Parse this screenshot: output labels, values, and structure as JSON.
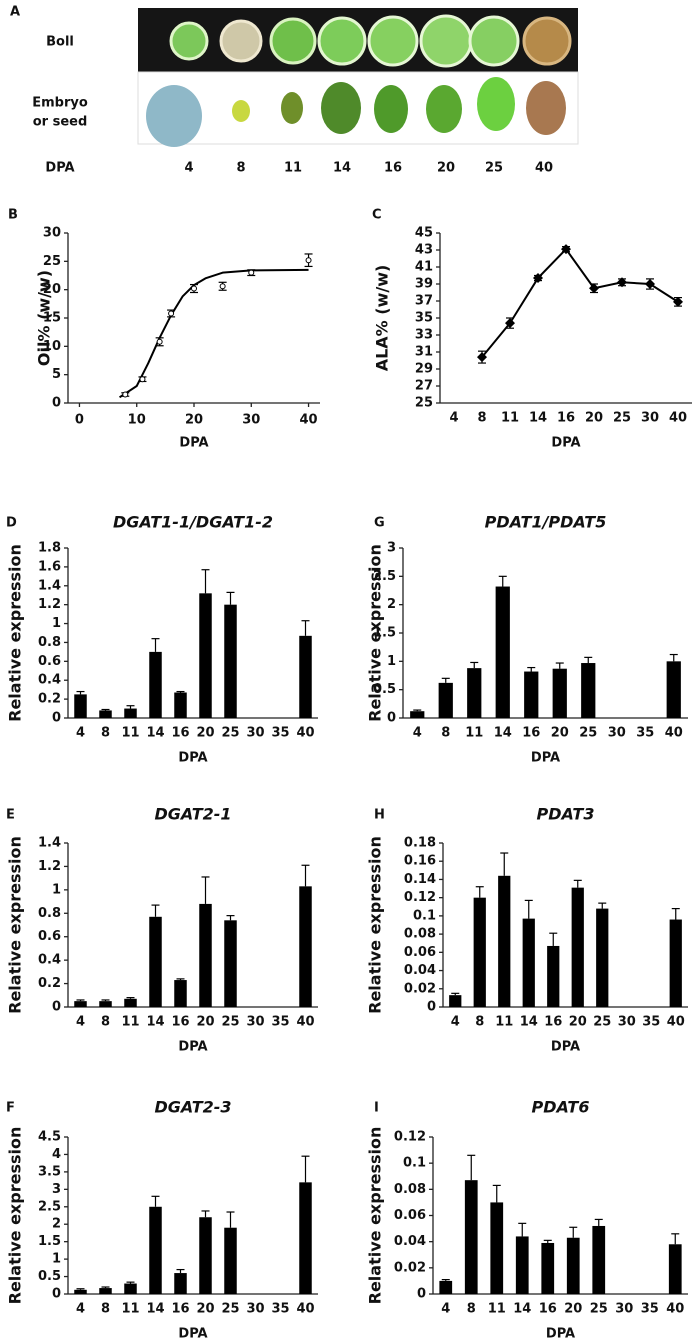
{
  "panel_a": {
    "label": "A",
    "rows": [
      "Boll",
      "Embryo",
      "or seed"
    ],
    "x_label": "DPA",
    "stages": [
      4,
      8,
      11,
      14,
      16,
      20,
      25,
      40
    ]
  },
  "chart_data": [
    {
      "panel": "B",
      "type": "scatter",
      "xlabel": "DPA",
      "ylabel": "Oil% (w/w)",
      "color": "#000000",
      "x": [
        8,
        11,
        14,
        16,
        20,
        25,
        30,
        40
      ],
      "values": [
        1.5,
        4.2,
        10.8,
        15.8,
        20.2,
        20.6,
        23,
        25.2
      ],
      "errors": [
        0.3,
        0.4,
        0.7,
        0.6,
        0.7,
        0.7,
        0.5,
        1.1
      ],
      "fit": {
        "x": [
          7,
          10,
          12,
          14,
          16,
          18,
          20,
          22,
          25,
          30,
          40
        ],
        "values": [
          1,
          3,
          7,
          11.5,
          15.5,
          18.8,
          20.8,
          22,
          23,
          23.4,
          23.5
        ]
      },
      "xlim": [
        -2,
        42
      ],
      "xticks": [
        0,
        10,
        20,
        30,
        40
      ],
      "ylim": [
        0,
        30
      ],
      "yticks": [
        0,
        5,
        10,
        15,
        20,
        25,
        30
      ]
    },
    {
      "panel": "C",
      "type": "line",
      "xlabel": "DPA",
      "ylabel": "ALA% (w/w)",
      "color": "#000000",
      "categories": [
        4,
        8,
        11,
        14,
        16,
        20,
        25,
        30,
        40
      ],
      "values": [
        null,
        30.4,
        34.4,
        39.7,
        43.1,
        38.5,
        39.2,
        39,
        36.9
      ],
      "errors": [
        null,
        0.7,
        0.6,
        0.3,
        0.3,
        0.5,
        0.4,
        0.6,
        0.5
      ],
      "ylim": [
        25,
        45
      ],
      "yticks": [
        25,
        27,
        29,
        31,
        33,
        35,
        37,
        39,
        41,
        43,
        45
      ]
    },
    {
      "panel": "D",
      "type": "bar",
      "title": "DGAT1-1/DGAT1-2",
      "xlabel": "DPA",
      "ylabel": "Relative expression",
      "color": "#000000",
      "categories": [
        4,
        8,
        11,
        14,
        16,
        20,
        25,
        30,
        35,
        40
      ],
      "values": [
        0.25,
        0.08,
        0.1,
        0.7,
        0.27,
        1.32,
        1.2,
        null,
        null,
        0.87
      ],
      "errors": [
        0.03,
        0.01,
        0.03,
        0.14,
        0.01,
        0.25,
        0.13,
        null,
        null,
        0.16
      ],
      "ylim": [
        0,
        1.8
      ],
      "yticks": [
        0,
        0.2,
        0.4,
        0.6,
        0.8,
        1,
        1.2,
        1.4,
        1.6,
        1.8
      ]
    },
    {
      "panel": "G",
      "type": "bar",
      "title": "PDAT1/PDAT5",
      "xlabel": "DPA",
      "ylabel": "Relative expression",
      "color": "#000000",
      "categories": [
        4,
        8,
        11,
        14,
        16,
        20,
        25,
        30,
        35,
        40
      ],
      "values": [
        0.12,
        0.62,
        0.88,
        2.32,
        0.82,
        0.87,
        0.97,
        null,
        null,
        1.0
      ],
      "errors": [
        0.02,
        0.08,
        0.1,
        0.18,
        0.07,
        0.1,
        0.1,
        null,
        null,
        0.12
      ],
      "ylim": [
        0,
        3
      ],
      "yticks": [
        0,
        0.5,
        1,
        1.5,
        2,
        2.5,
        3
      ]
    },
    {
      "panel": "E",
      "type": "bar",
      "title": "DGAT2-1",
      "xlabel": "DPA",
      "ylabel": "Relative expression",
      "color": "#000000",
      "categories": [
        4,
        8,
        11,
        14,
        16,
        20,
        25,
        30,
        35,
        40
      ],
      "values": [
        0.05,
        0.05,
        0.07,
        0.77,
        0.23,
        0.88,
        0.74,
        null,
        null,
        1.03
      ],
      "errors": [
        0.01,
        0.01,
        0.01,
        0.1,
        0.01,
        0.23,
        0.04,
        null,
        null,
        0.18
      ],
      "ylim": [
        0,
        1.4
      ],
      "yticks": [
        0,
        0.2,
        0.4,
        0.6,
        0.8,
        1,
        1.2,
        1.4
      ]
    },
    {
      "panel": "H",
      "type": "bar",
      "title": "PDAT3",
      "xlabel": "DPA",
      "ylabel": "Relative expression",
      "color": "#000000",
      "categories": [
        4,
        8,
        11,
        14,
        16,
        20,
        25,
        30,
        35,
        40
      ],
      "values": [
        0.013,
        0.12,
        0.144,
        0.097,
        0.067,
        0.131,
        0.108,
        null,
        null,
        0.096
      ],
      "errors": [
        0.002,
        0.012,
        0.025,
        0.02,
        0.014,
        0.008,
        0.006,
        null,
        null,
        0.012
      ],
      "ylim": [
        0,
        0.18
      ],
      "yticks": [
        0,
        0.02,
        0.04,
        0.06,
        0.08,
        0.1,
        0.12,
        0.14,
        0.16,
        0.18
      ]
    },
    {
      "panel": "F",
      "type": "bar",
      "title": "DGAT2-3",
      "xlabel": "DPA",
      "ylabel": "Relative expression",
      "color": "#000000",
      "categories": [
        4,
        8,
        11,
        14,
        16,
        20,
        25,
        30,
        35,
        40
      ],
      "values": [
        0.12,
        0.17,
        0.3,
        2.5,
        0.6,
        2.2,
        1.9,
        null,
        null,
        3.2
      ],
      "errors": [
        0.03,
        0.03,
        0.04,
        0.3,
        0.1,
        0.18,
        0.45,
        null,
        null,
        0.75
      ],
      "ylim": [
        0,
        4.5
      ],
      "yticks": [
        0,
        0.5,
        1,
        1.5,
        2,
        2.5,
        3,
        3.5,
        4,
        4.5
      ]
    },
    {
      "panel": "I",
      "type": "bar",
      "title": "PDAT6",
      "xlabel": "DPA",
      "ylabel": "Relative expression",
      "color": "#000000",
      "categories": [
        4,
        8,
        11,
        14,
        16,
        20,
        25,
        30,
        35,
        40
      ],
      "values": [
        0.01,
        0.087,
        0.07,
        0.044,
        0.039,
        0.043,
        0.052,
        null,
        null,
        0.038
      ],
      "errors": [
        0.001,
        0.019,
        0.013,
        0.01,
        0.002,
        0.008,
        0.005,
        null,
        null,
        0.008
      ],
      "ylim": [
        0,
        0.12
      ],
      "yticks": [
        0,
        0.02,
        0.04,
        0.06,
        0.08,
        0.1,
        0.12
      ]
    }
  ]
}
